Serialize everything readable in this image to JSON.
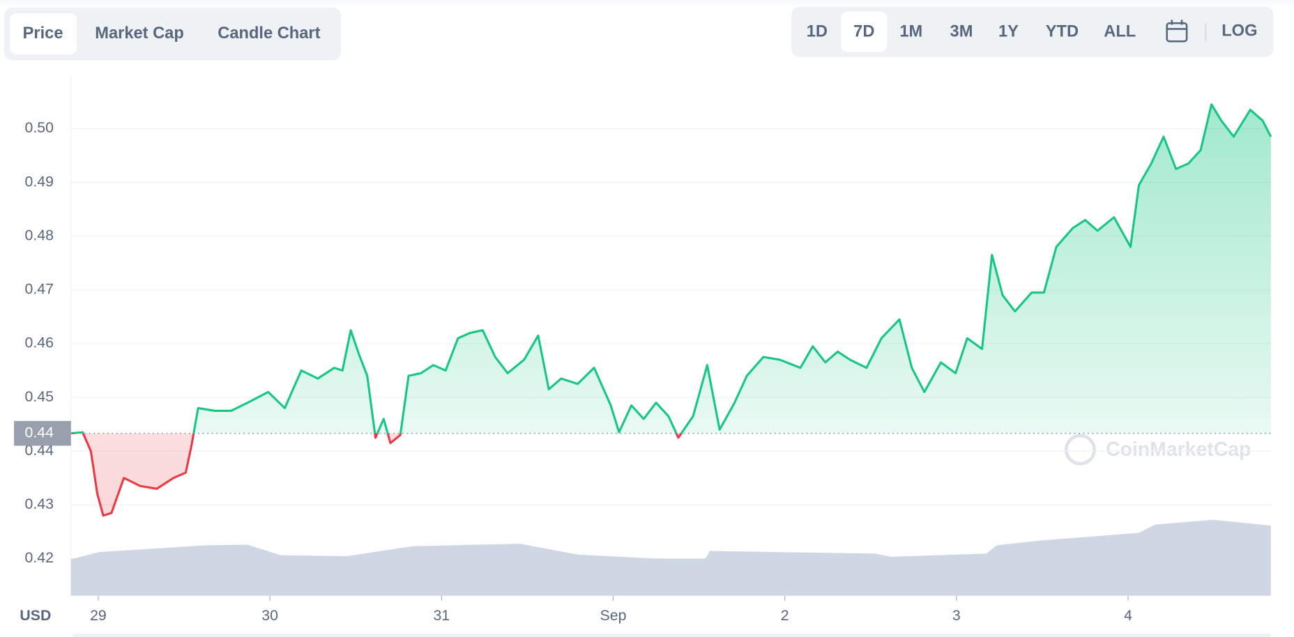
{
  "tabs": [
    "Price",
    "Market Cap",
    "Candle Chart"
  ],
  "ranges": [
    "1D",
    "7D",
    "1M",
    "3M",
    "1Y",
    "YTD",
    "ALL"
  ],
  "log": "LOG",
  "watermark": "CoinMarketCap",
  "chart_data": {
    "type": "line",
    "ylabel": "USD",
    "up_color": "#16c784",
    "down_color": "#ea3943",
    "x": [
      -0.159,
      -0.091,
      -0.043,
      -0.005,
      0.029,
      0.077,
      0.149,
      0.245,
      0.341,
      0.438,
      0.51,
      0.543,
      0.582,
      0.678,
      0.774,
      0.87,
      0.99,
      1.087,
      1.183,
      1.279,
      1.375,
      1.423,
      1.471,
      1.519,
      1.567,
      1.615,
      1.663,
      1.702,
      1.76,
      1.808,
      1.88,
      1.952,
      2.024,
      2.096,
      2.168,
      2.24,
      2.313,
      2.385,
      2.481,
      2.563,
      2.625,
      2.697,
      2.793,
      2.889,
      2.986,
      3.034,
      3.106,
      3.178,
      3.25,
      3.322,
      3.38,
      3.466,
      3.548,
      3.62,
      3.707,
      3.779,
      3.875,
      3.971,
      4.091,
      4.163,
      4.236,
      4.308,
      4.38,
      4.476,
      4.563,
      4.668,
      4.74,
      4.813,
      4.909,
      4.995,
      5.063,
      5.149,
      5.207,
      5.269,
      5.341,
      5.438,
      5.51,
      5.582,
      5.678,
      5.75,
      5.822,
      5.918,
      6.014,
      6.063,
      6.135,
      6.207,
      6.279,
      6.351,
      6.423,
      6.486,
      6.543,
      6.615,
      6.712,
      6.784,
      6.832
    ],
    "values": [
      0.4433,
      0.4435,
      0.44,
      0.432,
      0.428,
      0.4285,
      0.435,
      0.4335,
      0.433,
      0.435,
      0.436,
      0.441,
      0.448,
      0.4475,
      0.4475,
      0.449,
      0.451,
      0.448,
      0.455,
      0.4535,
      0.4555,
      0.455,
      0.4625,
      0.458,
      0.454,
      0.4425,
      0.446,
      0.4415,
      0.443,
      0.454,
      0.4545,
      0.456,
      0.455,
      0.461,
      0.462,
      0.4625,
      0.4575,
      0.4545,
      0.457,
      0.4615,
      0.4515,
      0.4535,
      0.4525,
      0.4555,
      0.4485,
      0.4435,
      0.4485,
      0.446,
      0.449,
      0.4465,
      0.4425,
      0.4465,
      0.456,
      0.444,
      0.449,
      0.454,
      0.4575,
      0.457,
      0.4555,
      0.4595,
      0.4565,
      0.4585,
      0.457,
      0.4555,
      0.461,
      0.4645,
      0.4555,
      0.451,
      0.4565,
      0.4545,
      0.461,
      0.459,
      0.4765,
      0.469,
      0.466,
      0.4695,
      0.4695,
      0.478,
      0.4815,
      0.483,
      0.481,
      0.4835,
      0.478,
      0.4895,
      0.4935,
      0.4985,
      0.4925,
      0.4935,
      0.496,
      0.5045,
      0.5015,
      0.4985,
      0.5035,
      0.5015,
      0.4985
    ],
    "baseline": {
      "value": 0.4433,
      "label": "0.44"
    },
    "volume": {
      "axis": "y2",
      "color": "#cfd6e4",
      "x": [
        -0.159,
        0.005,
        0.63,
        0.87,
        1.063,
        1.447,
        1.832,
        2.457,
        2.793,
        3.274,
        3.538,
        3.563,
        4.524,
        4.62,
        5.173,
        5.236,
        5.486,
        6.063,
        6.159,
        6.495,
        6.832
      ],
      "values": [
        7.0,
        8.4,
        9.7,
        9.8,
        7.8,
        7.6,
        9.5,
        10.0,
        7.9,
        7.1,
        7.1,
        8.6,
        8.1,
        7.5,
        8.1,
        9.7,
        10.6,
        12.1,
        13.7,
        14.6,
        13.5
      ]
    },
    "y2lim": [
      0,
      100
    ],
    "xlim": [
      -0.159,
      6.832
    ],
    "xticks": [
      {
        "value": 0,
        "label": "29"
      },
      {
        "value": 1,
        "label": "30"
      },
      {
        "value": 2,
        "label": "31"
      },
      {
        "value": 3,
        "label": "Sep"
      },
      {
        "value": 4,
        "label": "2"
      },
      {
        "value": 5,
        "label": "3"
      },
      {
        "value": 6,
        "label": "4"
      }
    ],
    "ylim": [
      0.4131,
      0.5098
    ],
    "yticks": [
      0.42,
      0.43,
      0.44,
      0.45,
      0.46,
      0.47,
      0.48,
      0.49,
      {
        "value": 0.5,
        "label": "0.50"
      }
    ],
    "grid": true
  }
}
